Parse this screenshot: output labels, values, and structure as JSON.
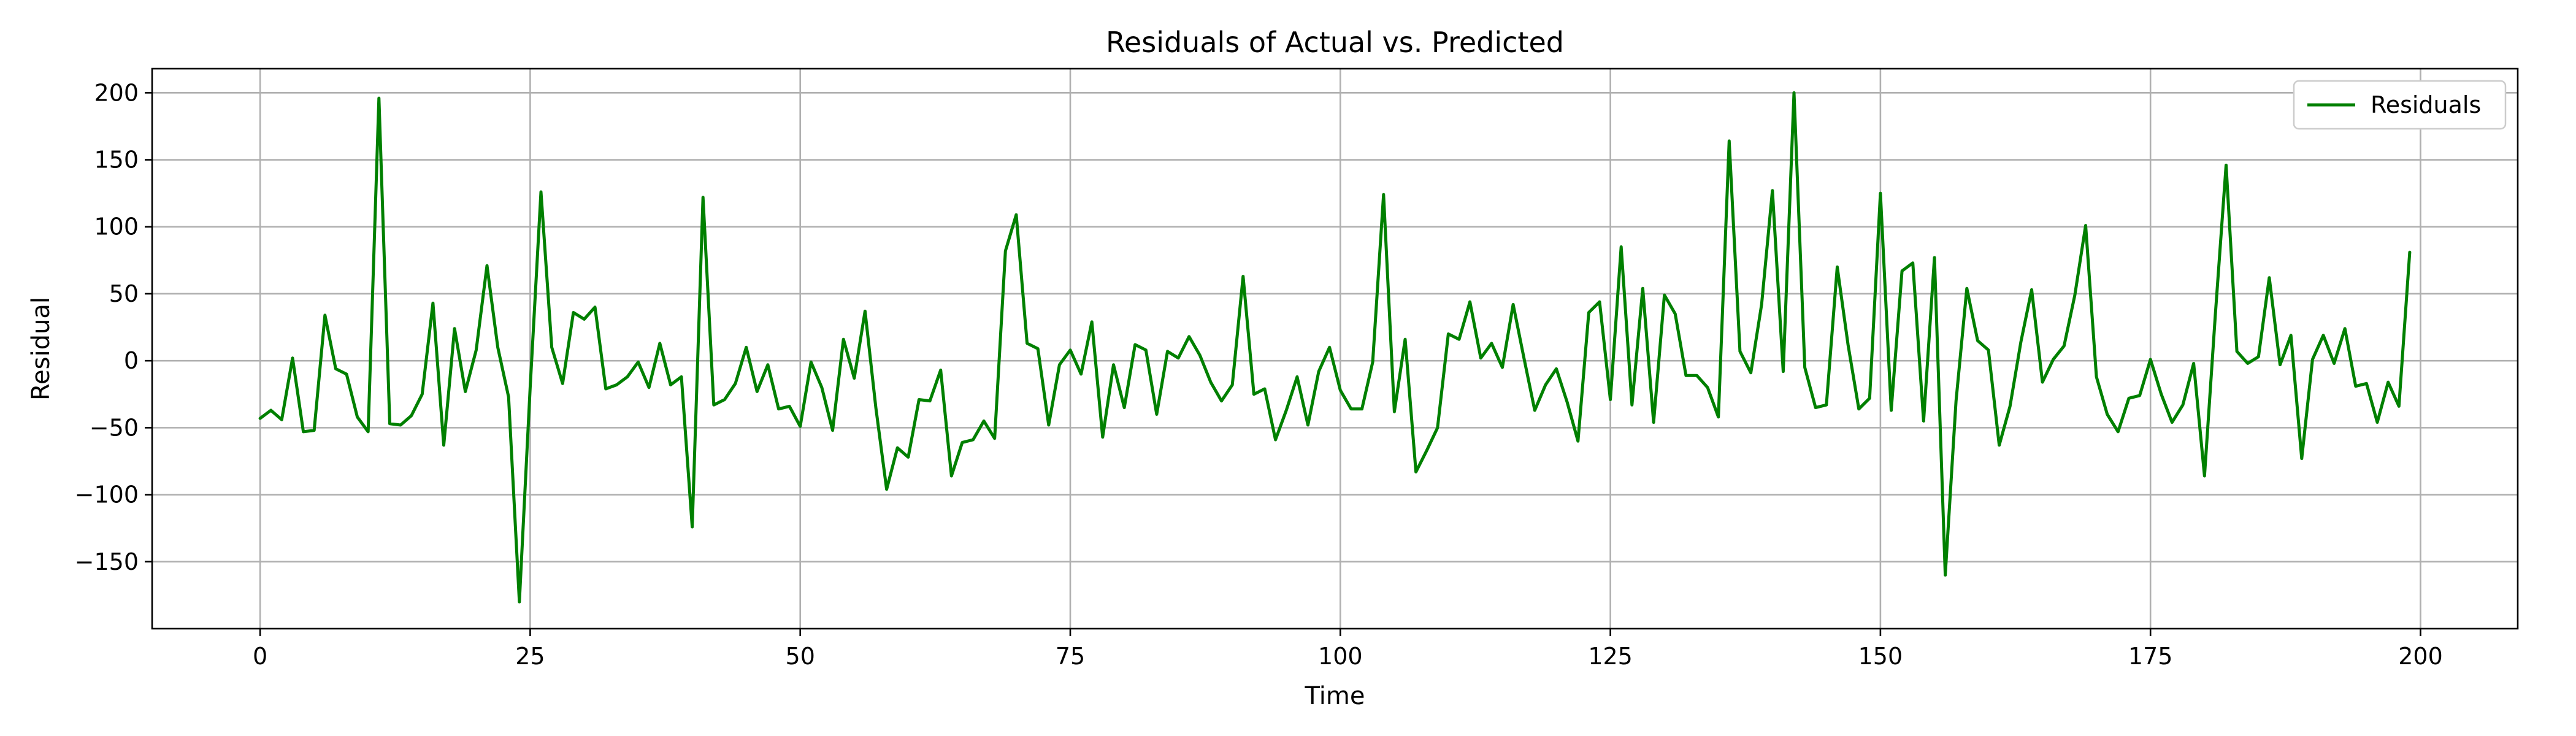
{
  "chart_data": {
    "type": "line",
    "title": "Residuals of Actual vs. Predicted",
    "xlabel": "Time",
    "ylabel": "Residual",
    "xlim": [
      -10,
      209
    ],
    "ylim": [
      -200,
      218
    ],
    "xticks": [
      0,
      25,
      50,
      75,
      100,
      125,
      150,
      175,
      200
    ],
    "yticks": [
      -150,
      -100,
      -50,
      0,
      50,
      100,
      150,
      200
    ],
    "grid": true,
    "legend": "top-right",
    "series": [
      {
        "name": "Residuals",
        "color": "#008000",
        "x": [
          0,
          1,
          2,
          3,
          4,
          5,
          6,
          7,
          8,
          9,
          10,
          11,
          12,
          13,
          14,
          15,
          16,
          17,
          18,
          19,
          20,
          21,
          22,
          23,
          24,
          25,
          26,
          27,
          28,
          29,
          30,
          31,
          32,
          33,
          34,
          35,
          36,
          37,
          38,
          39,
          40,
          41,
          42,
          43,
          44,
          45,
          46,
          47,
          48,
          49,
          50,
          51,
          52,
          53,
          54,
          55,
          56,
          57,
          58,
          59,
          60,
          61,
          62,
          63,
          64,
          65,
          66,
          67,
          68,
          69,
          70,
          71,
          72,
          73,
          74,
          75,
          76,
          77,
          78,
          79,
          80,
          81,
          82,
          83,
          84,
          85,
          86,
          87,
          88,
          89,
          90,
          91,
          92,
          93,
          94,
          95,
          96,
          97,
          98,
          99,
          100,
          101,
          102,
          103,
          104,
          105,
          106,
          107,
          108,
          109,
          110,
          111,
          112,
          113,
          114,
          115,
          116,
          117,
          118,
          119,
          120,
          121,
          122,
          123,
          124,
          125,
          126,
          127,
          128,
          129,
          130,
          131,
          132,
          133,
          134,
          135,
          136,
          137,
          138,
          139,
          140,
          141,
          142,
          143,
          144,
          145,
          146,
          147,
          148,
          149,
          150,
          151,
          152,
          153,
          154,
          155,
          156,
          157,
          158,
          159,
          160,
          161,
          162,
          163,
          164,
          165,
          166,
          167,
          168,
          169,
          170,
          171,
          172,
          173,
          174,
          175,
          176,
          177,
          178,
          179,
          180,
          181,
          182,
          183,
          184,
          185,
          186,
          187,
          188,
          189,
          190,
          191,
          192,
          193,
          194,
          195,
          196,
          197,
          198,
          199
        ],
        "values": [
          -43,
          -37,
          -44,
          2,
          -53,
          -52,
          34,
          -6,
          -10,
          -42,
          -53,
          196,
          -47,
          -48,
          -41,
          -25,
          43,
          -63,
          24,
          -23,
          8,
          71,
          10,
          -27,
          -180,
          -20,
          126,
          10,
          -17,
          36,
          31,
          40,
          -21,
          -18,
          -12,
          -1,
          -20,
          13,
          -18,
          -12,
          -124,
          122,
          -33,
          -29,
          -17,
          10,
          -23,
          -3,
          -36,
          -34,
          -49,
          -1,
          -20,
          -52,
          16,
          -13,
          37,
          -35,
          -96,
          -65,
          -72,
          -29,
          -30,
          -7,
          -86,
          -61,
          -59,
          -45,
          -58,
          82,
          109,
          13,
          9,
          -48,
          -3,
          8,
          -10,
          29,
          -57,
          -3,
          -35,
          12,
          8,
          -40,
          7,
          2,
          18,
          4,
          -16,
          -30,
          -18,
          63,
          -25,
          -21,
          -59,
          -37,
          -12,
          -48,
          -8,
          10,
          -22,
          -36,
          -36,
          -1,
          124,
          -38,
          16,
          -83,
          -67,
          -50,
          20,
          16,
          44,
          2,
          13,
          -5,
          42,
          2,
          -37,
          -18,
          -6,
          -31,
          -60,
          36,
          44,
          -29,
          85,
          -33,
          54,
          -46,
          49,
          35,
          -11,
          -11,
          -20,
          -42,
          164,
          7,
          -9,
          42,
          127,
          -8,
          200,
          -5,
          -35,
          -33,
          70,
          12,
          -36,
          -28,
          125,
          -37,
          67,
          73,
          -45,
          77,
          -160,
          -30,
          54,
          15,
          8,
          -63,
          -34,
          14,
          53,
          -16,
          1,
          11,
          49,
          101,
          -12,
          -40,
          -53,
          -28,
          -26,
          1,
          -25,
          -46,
          -33,
          -2,
          -86,
          34,
          146,
          7,
          -2,
          3,
          62,
          -3,
          19,
          -73,
          1,
          19,
          -2,
          24,
          -19,
          -17,
          -46,
          -16,
          -34,
          81
        ]
      }
    ]
  }
}
